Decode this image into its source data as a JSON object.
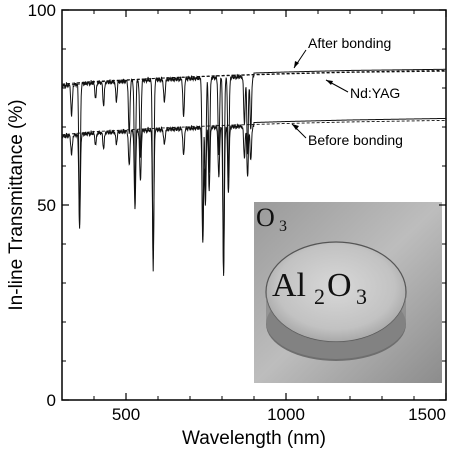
{
  "chart_data": {
    "type": "line",
    "title": "",
    "xlabel": "Wavelength (nm)",
    "ylabel": "In-line Transmittance (%)",
    "xlim": [
      300,
      1500
    ],
    "ylim": [
      0,
      100
    ],
    "xticks": [
      "500",
      "1000",
      "1500"
    ],
    "yticks": [
      "0",
      "50",
      "100"
    ],
    "grid": false,
    "annotations": [
      "After bonding",
      "Nd:YAG",
      "Before bonding"
    ],
    "series": [
      {
        "name": "After bonding",
        "baseline": [
          [
            300,
            81.5
          ],
          [
            400,
            82.2
          ],
          [
            600,
            83.0
          ],
          [
            800,
            83.6
          ],
          [
            1000,
            84.1
          ],
          [
            1200,
            84.5
          ],
          [
            1500,
            84.8
          ]
        ],
        "absorption_dips": [
          [
            330,
            8
          ],
          [
            355,
            36
          ],
          [
            405,
            4
          ],
          [
            430,
            6
          ],
          [
            470,
            5
          ],
          [
            510,
            14
          ],
          [
            528,
            30
          ],
          [
            545,
            20
          ],
          [
            585,
            49
          ],
          [
            620,
            6
          ],
          [
            680,
            10
          ],
          [
            740,
            42
          ],
          [
            748,
            30
          ],
          [
            760,
            24
          ],
          [
            790,
            20
          ],
          [
            805,
            50
          ],
          [
            820,
            26
          ],
          [
            870,
            12
          ],
          [
            880,
            20
          ],
          [
            890,
            14
          ]
        ]
      },
      {
        "name": "Nd:YAG",
        "baseline": [
          [
            300,
            80.5
          ],
          [
            400,
            81.5
          ],
          [
            600,
            82.5
          ],
          [
            800,
            83.2
          ],
          [
            1000,
            83.7
          ],
          [
            1200,
            84.1
          ],
          [
            1500,
            84.5
          ]
        ],
        "absorption_dips": []
      },
      {
        "name": "Before bonding",
        "baseline": [
          [
            300,
            68.5
          ],
          [
            400,
            69.3
          ],
          [
            600,
            70.2
          ],
          [
            800,
            70.9
          ],
          [
            1000,
            71.4
          ],
          [
            1200,
            71.8
          ],
          [
            1500,
            72.2
          ]
        ],
        "absorption_dips": [
          [
            330,
            5
          ],
          [
            355,
            24
          ],
          [
            405,
            3
          ],
          [
            430,
            4
          ],
          [
            470,
            3
          ],
          [
            510,
            9
          ],
          [
            528,
            20
          ],
          [
            545,
            13
          ],
          [
            585,
            33
          ],
          [
            620,
            4
          ],
          [
            680,
            7
          ],
          [
            740,
            30
          ],
          [
            748,
            20
          ],
          [
            760,
            16
          ],
          [
            790,
            13
          ],
          [
            805,
            38
          ],
          [
            820,
            17
          ],
          [
            870,
            8
          ],
          [
            880,
            13
          ],
          [
            890,
            9
          ]
        ]
      }
    ],
    "inset": {
      "description_hidden": true,
      "label_main": "Al",
      "label_sub1": "2",
      "label_mid": "O",
      "label_sub2": "3",
      "label_partial": "O",
      "label_partial_sub": "3"
    }
  }
}
